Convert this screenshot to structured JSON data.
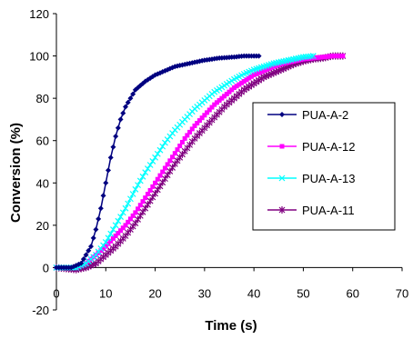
{
  "chart_data": {
    "type": "line",
    "title": "",
    "xlabel": "Time (s)",
    "ylabel": "Conversion (%)",
    "xlim": [
      0,
      70
    ],
    "ylim": [
      -20,
      120
    ],
    "xticks": [
      0,
      10,
      20,
      30,
      40,
      50,
      60,
      70
    ],
    "yticks": [
      -20,
      0,
      20,
      40,
      60,
      80,
      100,
      120
    ],
    "grid": false,
    "legend_position": "right",
    "series": [
      {
        "name": "PUA-A-2",
        "color": "#000080",
        "marker": "diamond",
        "x": [
          0,
          3,
          5,
          7,
          8,
          9,
          10,
          11,
          12,
          13,
          14,
          15,
          16,
          17,
          18,
          20,
          22,
          24,
          26,
          28,
          30,
          33,
          36,
          38,
          40,
          41
        ],
        "y": [
          0,
          0,
          2,
          10,
          18,
          28,
          40,
          52,
          62,
          70,
          76,
          80,
          84,
          86,
          88,
          91,
          93,
          95,
          96,
          97,
          98,
          99,
          99.5,
          100,
          100,
          100
        ]
      },
      {
        "name": "PUA-A-12",
        "color": "#FF00FF",
        "marker": "square",
        "x": [
          0,
          4,
          6,
          8,
          10,
          12,
          14,
          16,
          18,
          20,
          22,
          24,
          26,
          28,
          30,
          32,
          34,
          36,
          38,
          40,
          42,
          44,
          46,
          48,
          50,
          52,
          54,
          56,
          58
        ],
        "y": [
          0,
          0,
          2,
          6,
          10,
          15,
          20,
          26,
          33,
          40,
          47,
          54,
          61,
          67,
          72,
          77,
          81,
          85,
          88,
          91,
          93,
          95,
          96.5,
          97.5,
          98.5,
          99,
          99.5,
          100,
          100
        ]
      },
      {
        "name": "PUA-A-13",
        "color": "#00FFFF",
        "marker": "star",
        "x": [
          0,
          4,
          6,
          8,
          10,
          12,
          14,
          16,
          18,
          20,
          22,
          24,
          26,
          28,
          30,
          32,
          34,
          36,
          38,
          40,
          42,
          44,
          46,
          48,
          50,
          52
        ],
        "y": [
          0,
          0,
          2,
          6,
          12,
          20,
          28,
          37,
          45,
          52,
          59,
          65,
          70,
          75,
          79,
          83,
          86,
          89,
          91.5,
          93.5,
          95,
          96.5,
          97.5,
          98.5,
          99.5,
          100
        ]
      },
      {
        "name": "PUA-A-11",
        "color": "#800080",
        "marker": "asterisk",
        "x": [
          0,
          4,
          6,
          8,
          10,
          12,
          14,
          16,
          18,
          20,
          22,
          24,
          26,
          28,
          30,
          32,
          34,
          36,
          38,
          40,
          42,
          44,
          46,
          48,
          50,
          52,
          54,
          56,
          58
        ],
        "y": [
          0,
          -1,
          0,
          2,
          6,
          10,
          15,
          21,
          28,
          35,
          42,
          49,
          55,
          61,
          66,
          71,
          76,
          80,
          84,
          87,
          90,
          92,
          94,
          96,
          97.5,
          98.5,
          99,
          100,
          100
        ]
      }
    ]
  }
}
